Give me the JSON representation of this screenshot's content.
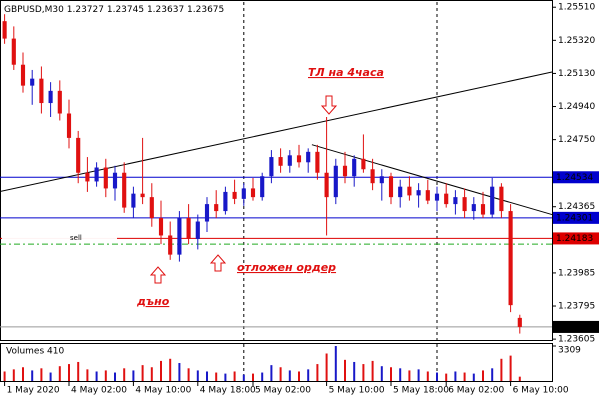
{
  "chart_data": {
    "type": "candlestick",
    "header": {
      "symbol": "GBPUSD,M30",
      "values": [
        1.23727,
        1.23745,
        1.23637,
        1.23675
      ]
    },
    "open": [
      1.2543,
      1.2533,
      1.2518,
      1.2506,
      1.251,
      1.2496,
      1.2503,
      1.249,
      1.2476,
      1.2456,
      1.2451,
      1.2459,
      1.2447,
      1.2456,
      1.2436,
      1.2444,
      1.2442,
      1.243,
      1.242,
      1.2409,
      1.243,
      1.2418,
      1.2428,
      1.2438,
      1.2434,
      1.2445,
      1.2441,
      1.2447,
      1.2442,
      1.2454,
      1.2465,
      1.246,
      1.2466,
      1.2462,
      1.2468,
      1.2456,
      1.2442,
      1.246,
      1.2454,
      1.2464,
      1.2458,
      1.245,
      1.2454,
      1.2442,
      1.2448,
      1.2443,
      1.2446,
      1.244,
      1.2444,
      1.2438,
      1.2442,
      1.2434,
      1.2438,
      1.2432,
      1.2448,
      1.2434,
      1.23727
    ],
    "high": [
      1.2547,
      1.254,
      1.2525,
      1.2515,
      1.2517,
      1.2508,
      1.2509,
      1.2498,
      1.248,
      1.2465,
      1.2462,
      1.2464,
      1.246,
      1.2462,
      1.2448,
      1.2476,
      1.245,
      1.244,
      1.2428,
      1.2434,
      1.2438,
      1.2432,
      1.2442,
      1.2446,
      1.2448,
      1.2452,
      1.245,
      1.2453,
      1.2456,
      1.2469,
      1.247,
      1.2469,
      1.2472,
      1.247,
      1.2472,
      1.2488,
      1.2464,
      1.2468,
      1.2466,
      1.2478,
      1.2464,
      1.2458,
      1.2456,
      1.2452,
      1.2454,
      1.245,
      1.2452,
      1.2448,
      1.245,
      1.2446,
      1.2447,
      1.2442,
      1.2445,
      1.2453,
      1.245,
      1.2438,
      1.23745
    ],
    "low": [
      1.253,
      1.2515,
      1.2502,
      1.2495,
      1.249,
      1.2488,
      1.2486,
      1.247,
      1.245,
      1.2445,
      1.2448,
      1.2442,
      1.244,
      1.2433,
      1.243,
      1.2438,
      1.2425,
      1.2415,
      1.2406,
      1.2405,
      1.2415,
      1.2412,
      1.2422,
      1.243,
      1.2432,
      1.2438,
      1.2437,
      1.244,
      1.244,
      1.245,
      1.2456,
      1.2456,
      1.2459,
      1.2456,
      1.2452,
      1.242,
      1.2438,
      1.245,
      1.2448,
      1.2456,
      1.2446,
      1.244,
      1.2438,
      1.2436,
      1.244,
      1.2436,
      1.2438,
      1.2434,
      1.2436,
      1.2432,
      1.243,
      1.2429,
      1.243,
      1.243,
      1.243,
      1.2376,
      1.23637
    ],
    "close": [
      1.2533,
      1.2518,
      1.2506,
      1.251,
      1.2496,
      1.2503,
      1.249,
      1.2476,
      1.2456,
      1.2451,
      1.2459,
      1.2447,
      1.2456,
      1.2436,
      1.2444,
      1.2442,
      1.243,
      1.242,
      1.2409,
      1.243,
      1.2418,
      1.2428,
      1.2438,
      1.2434,
      1.2445,
      1.2441,
      1.2447,
      1.2442,
      1.2454,
      1.2465,
      1.246,
      1.2466,
      1.2462,
      1.2468,
      1.2456,
      1.2442,
      1.246,
      1.2454,
      1.2464,
      1.2458,
      1.245,
      1.2454,
      1.2442,
      1.2448,
      1.2443,
      1.2446,
      1.244,
      1.2444,
      1.2438,
      1.2442,
      1.2434,
      1.2438,
      1.2432,
      1.2448,
      1.2434,
      1.238,
      1.23675
    ],
    "volumes": [
      900,
      1100,
      1300,
      1000,
      1200,
      800,
      1400,
      1600,
      1800,
      1100,
      900,
      1000,
      800,
      1200,
      1000,
      1500,
      1300,
      1900,
      2100,
      1700,
      1200,
      1000,
      900,
      800,
      700,
      900,
      600,
      700,
      800,
      1500,
      1300,
      1000,
      900,
      1100,
      1600,
      2600,
      3309,
      2000,
      1800,
      1600,
      1900,
      1400,
      1300,
      1200,
      1000,
      1100,
      900,
      800,
      700,
      900,
      800,
      700,
      1000,
      1200,
      2100,
      2400,
      410
    ],
    "up_color": "#1818c8",
    "down_color": "#e01010",
    "xlim": [
      -0.5,
      59.5
    ],
    "ylim": [
      1.236,
      1.2554
    ],
    "yticks": [
      {
        "value": 1.2551,
        "label": "1.25510"
      },
      {
        "value": 1.2532,
        "label": "1.25320"
      },
      {
        "value": 1.2513,
        "label": "1.25130"
      },
      {
        "value": 1.2494,
        "label": "1.24940"
      },
      {
        "value": 1.2475,
        "label": "1.24750"
      },
      1.24365,
      1.23985,
      1.23795,
      1.23605
    ],
    "xticks": [
      {
        "value": 0,
        "label": "1 May 2020"
      },
      {
        "value": 7,
        "label": "4 May 02:00"
      },
      {
        "value": 14,
        "label": "4 May 10:00"
      },
      {
        "value": 21,
        "label": "4 May 18:00"
      },
      {
        "value": 27,
        "label": "5 May 02:00"
      },
      {
        "value": 35,
        "label": "5 May 10:00"
      },
      {
        "value": 42,
        "label": "5 May 18:00"
      },
      {
        "value": 48,
        "label": "6 May 02:00"
      },
      {
        "value": 55,
        "label": "6 May 10:00"
      }
    ],
    "day_separators": [
      26,
      47
    ],
    "levels": [
      {
        "value": 1.24534,
        "color": "#0000cd"
      },
      {
        "value": 1.24301,
        "color": "#0000cd"
      },
      {
        "value": 1.24183,
        "color": "#dd0000"
      },
      {
        "value": 1.23675,
        "color": "#000000"
      }
    ],
    "pending_level": {
      "value": 1.2415,
      "color": "#22aa22"
    },
    "trendlines": [
      {
        "start": [
          -0.5,
          1.24452
        ],
        "end": [
          59.5,
          1.25138
        ],
        "color": "#000000"
      },
      {
        "start": [
          33.4,
          1.24721
        ],
        "end": [
          59.5,
          1.2432
        ],
        "color": "#000000"
      }
    ],
    "volume_title": "Volumes 410",
    "volume_ylim": [
      0,
      3309
    ],
    "volume_yticks": [
      3309
    ],
    "annotations": [
      "ТЛ на 4часа",
      "отложен ордер",
      "дъно"
    ],
    "sell_label": "sell"
  }
}
